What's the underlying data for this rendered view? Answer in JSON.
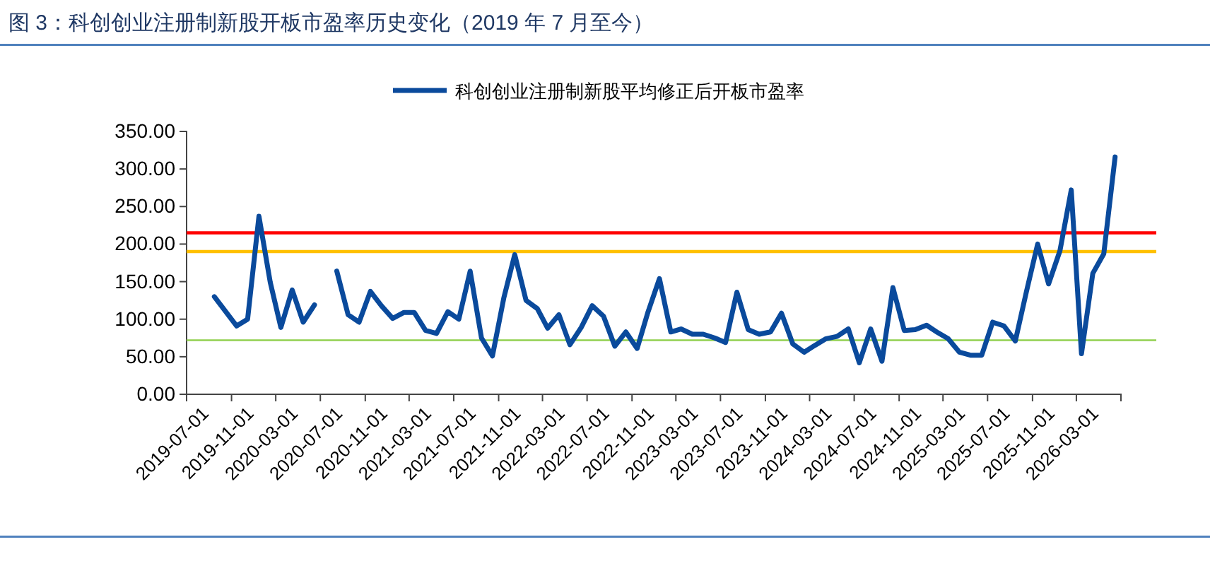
{
  "chart_data": {
    "type": "line",
    "title": "图 3：科创创业注册制新股开板市盈率历史变化（2019 年 7 月至今）",
    "x": [
      "2019-09-15",
      "2019-11-15",
      "2019-12-15",
      "2020-01-15",
      "2020-02-15",
      "2020-03-15",
      "2020-04-15",
      "2020-05-15",
      "2020-06-15",
      "2020-07-15",
      "2020-08-15",
      "2020-09-15",
      "2020-10-15",
      "2020-11-15",
      "2020-12-15",
      "2021-01-15",
      "2021-02-15",
      "2021-03-15",
      "2021-04-15",
      "2021-05-15",
      "2021-06-15",
      "2021-07-15",
      "2021-08-15",
      "2021-09-15",
      "2021-10-15",
      "2021-11-15",
      "2021-12-15",
      "2022-01-15",
      "2022-02-15",
      "2022-03-15",
      "2022-04-15",
      "2022-05-15",
      "2022-06-15",
      "2022-07-15",
      "2022-08-15",
      "2022-09-15",
      "2022-10-15",
      "2022-11-15",
      "2022-12-15",
      "2023-01-15",
      "2023-02-15",
      "2023-03-15",
      "2023-04-15",
      "2023-05-15",
      "2023-06-15",
      "2023-07-15",
      "2023-08-15",
      "2023-09-15",
      "2023-10-15",
      "2023-11-15",
      "2023-12-15",
      "2024-01-15",
      "2024-02-15",
      "2024-03-15",
      "2024-04-15",
      "2024-05-15",
      "2024-06-15",
      "2024-07-15",
      "2024-08-15",
      "2024-09-15",
      "2024-10-15",
      "2024-11-15",
      "2024-12-15",
      "2025-01-15",
      "2025-02-15",
      "2025-03-15",
      "2025-04-15",
      "2025-05-15",
      "2025-06-15",
      "2025-07-15",
      "2025-08-15",
      "2025-09-15",
      "2025-10-15",
      "2025-11-15",
      "2025-12-15",
      "2026-01-15",
      "2026-02-15",
      "2026-03-15",
      "2026-04-15",
      "2026-05-15",
      "2026-06-15"
    ],
    "series": [
      {
        "name": "科创创业注册制新股平均修正后开板市盈率",
        "color": "#0a4a9c",
        "values": [
          130,
          91,
          100,
          237,
          149,
          89,
          139,
          96,
          119,
          null,
          164,
          106,
          96,
          137,
          118,
          101,
          109,
          109,
          85,
          81,
          110,
          100,
          164,
          75,
          51,
          128,
          186,
          125,
          114,
          88,
          106,
          66,
          89,
          118,
          104,
          64,
          83,
          61,
          110,
          154,
          83,
          87,
          80,
          80,
          75,
          69,
          136,
          86,
          80,
          83,
          108,
          67,
          56,
          65,
          74,
          77,
          87,
          42,
          87,
          44,
          142,
          85,
          86,
          92,
          82,
          74,
          56,
          52,
          52,
          96,
          91,
          71,
          136,
          200,
          147,
          191,
          272,
          54,
          161,
          187,
          316
        ]
      }
    ],
    "xlim": [
      "2019-07-01",
      "2026-07-01"
    ],
    "xticks": [
      "2019-07-01",
      "2019-11-01",
      "2020-03-01",
      "2020-07-01",
      "2020-11-01",
      "2021-03-01",
      "2021-07-01",
      "2021-11-01",
      "2022-03-01",
      "2022-07-01",
      "2022-11-01",
      "2023-03-01",
      "2023-07-01",
      "2023-11-01",
      "2024-03-01",
      "2024-07-01",
      "2024-11-01",
      "2025-03-01",
      "2025-07-01",
      "2025-11-01",
      "2026-03-01"
    ],
    "ylim": [
      0,
      350
    ],
    "yticks": [
      {
        "value": 0,
        "label": "0.00"
      },
      {
        "value": 50,
        "label": "50.00"
      },
      {
        "value": 100,
        "label": "100.00"
      },
      {
        "value": 150,
        "label": "150.00"
      },
      {
        "value": 200,
        "label": "200.00"
      },
      {
        "value": 250,
        "label": "250.00"
      },
      {
        "value": 300,
        "label": "300.00"
      },
      {
        "value": 350,
        "label": "350.00"
      }
    ],
    "ref_lines": [
      {
        "axis": "y",
        "value": 215,
        "color": "#ff0000"
      },
      {
        "axis": "y",
        "value": 190,
        "color": "#ffc000"
      },
      {
        "axis": "y",
        "value": 72,
        "color": "#92d050"
      }
    ],
    "legend": "top",
    "grid": false,
    "marker": "none",
    "line_style": "solid"
  }
}
